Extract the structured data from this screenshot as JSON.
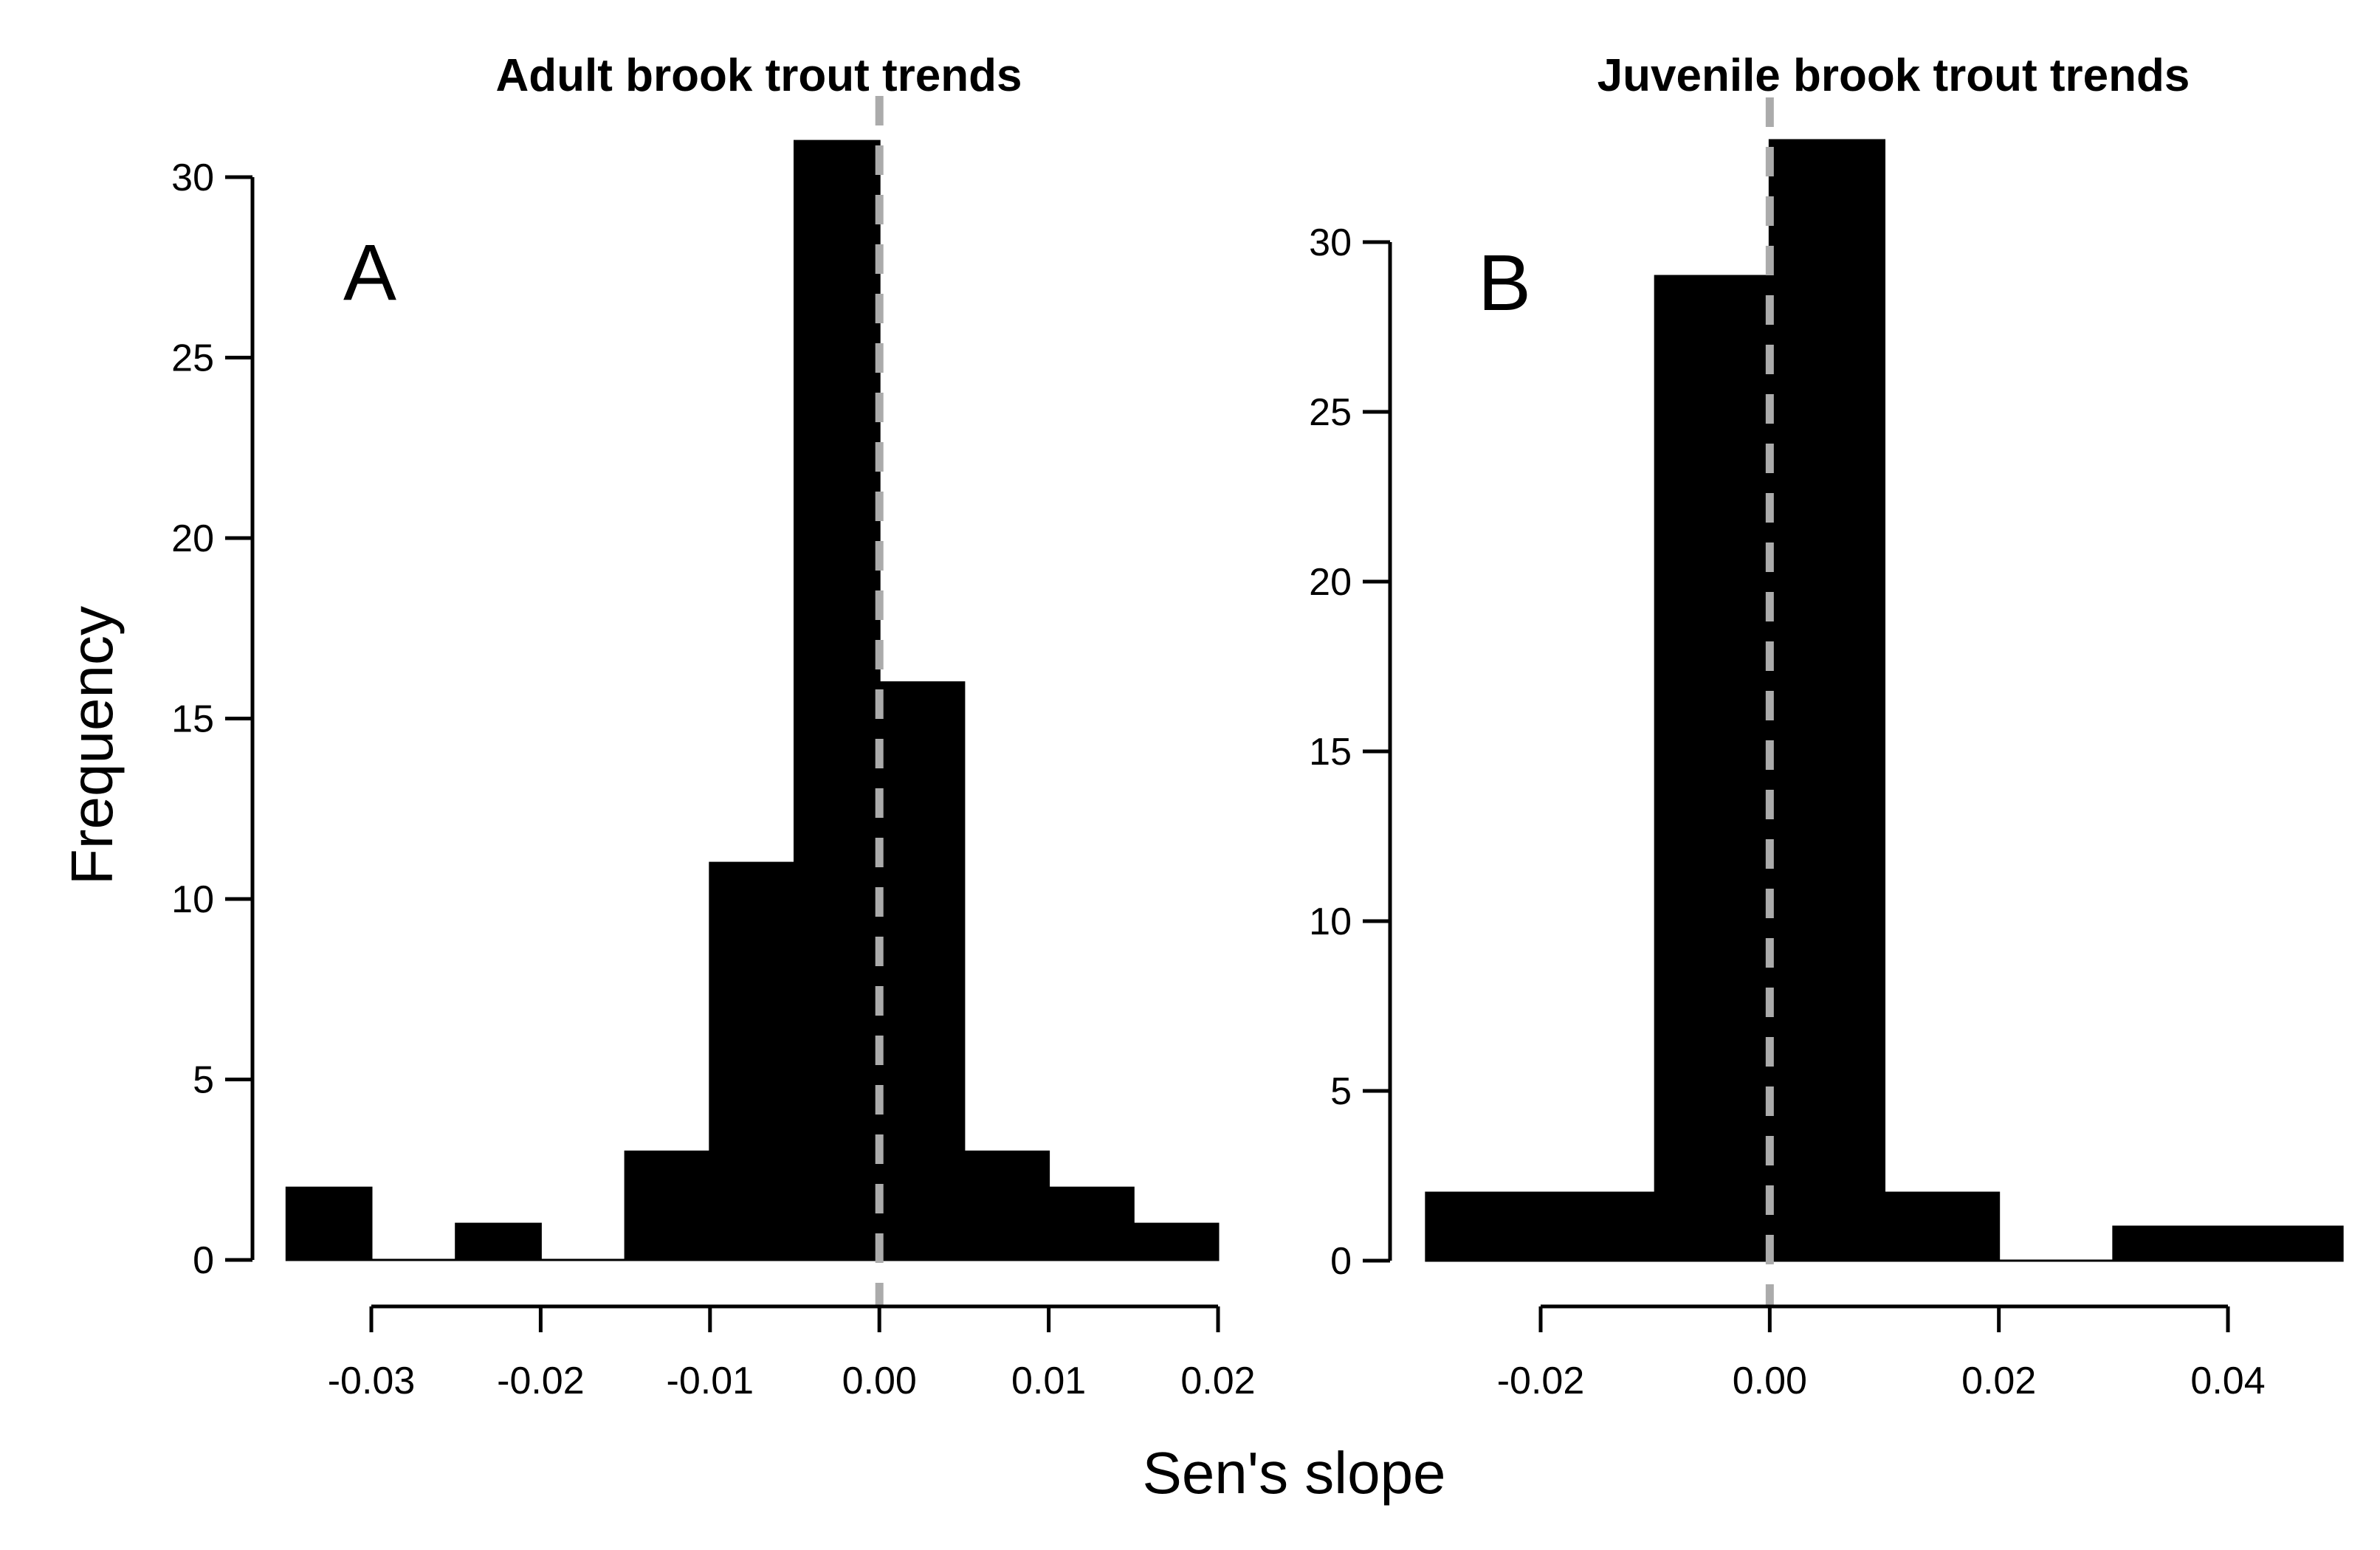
{
  "figure": {
    "xlabel": "Sen's slope",
    "ylabel": "Frequency"
  },
  "colors": {
    "background": "#ffffff",
    "bar_fill": "#000000",
    "axis": "#000000",
    "text": "#000000",
    "reference_line": "#ababab"
  },
  "chart_data": [
    {
      "type": "histogram",
      "panel_label": "A",
      "title": "Adult brook trout trends",
      "xlabel": "Sen's slope",
      "ylabel": "Frequency",
      "bin_start": -0.035,
      "bin_width": 0.005,
      "bin_edges": [
        -0.035,
        -0.03,
        -0.025,
        -0.02,
        -0.015,
        -0.01,
        -0.005,
        0,
        0.005,
        0.01,
        0.015,
        0.02
      ],
      "counts": [
        2,
        0,
        1,
        0,
        3,
        11,
        31,
        16,
        3,
        2,
        1
      ],
      "x_tick_values": [
        -0.03,
        -0.02,
        -0.01,
        0,
        0.01,
        0.02
      ],
      "x_tick_labels": [
        "-0.03",
        "-0.02",
        "-0.01",
        "0.00",
        "0.01",
        "0.02"
      ],
      "y_tick_values": [
        0,
        5,
        10,
        15,
        20,
        25,
        30
      ],
      "y_tick_labels": [
        "0",
        "5",
        "10",
        "15",
        "20",
        "25",
        "30"
      ],
      "xlim": [
        -0.035,
        0.02
      ],
      "ylim": [
        0,
        31
      ],
      "grid": "off",
      "reference_line_x": 0,
      "reference_line_style": "dashed"
    },
    {
      "type": "histogram",
      "panel_label": "B",
      "title": "Juvenile brook trout trends",
      "xlabel": "Sen's slope",
      "ylabel": "Frequency",
      "bin_start": -0.03,
      "bin_width": 0.01,
      "bin_edges": [
        -0.03,
        -0.02,
        -0.01,
        0,
        0.01,
        0.02,
        0.03,
        0.04,
        0.05
      ],
      "counts": [
        2,
        2,
        29,
        33,
        2,
        0,
        1,
        1
      ],
      "x_tick_values": [
        -0.02,
        0,
        0.02,
        0.04
      ],
      "x_tick_labels": [
        "-0.02",
        "0.00",
        "0.02",
        "0.04"
      ],
      "y_tick_values": [
        0,
        5,
        10,
        15,
        20,
        25,
        30
      ],
      "y_tick_labels": [
        "0",
        "5",
        "10",
        "15",
        "20",
        "25",
        "30"
      ],
      "xlim": [
        -0.03,
        0.05
      ],
      "ylim": [
        0,
        33
      ],
      "grid": "off",
      "reference_line_x": 0,
      "reference_line_style": "dashed"
    }
  ]
}
